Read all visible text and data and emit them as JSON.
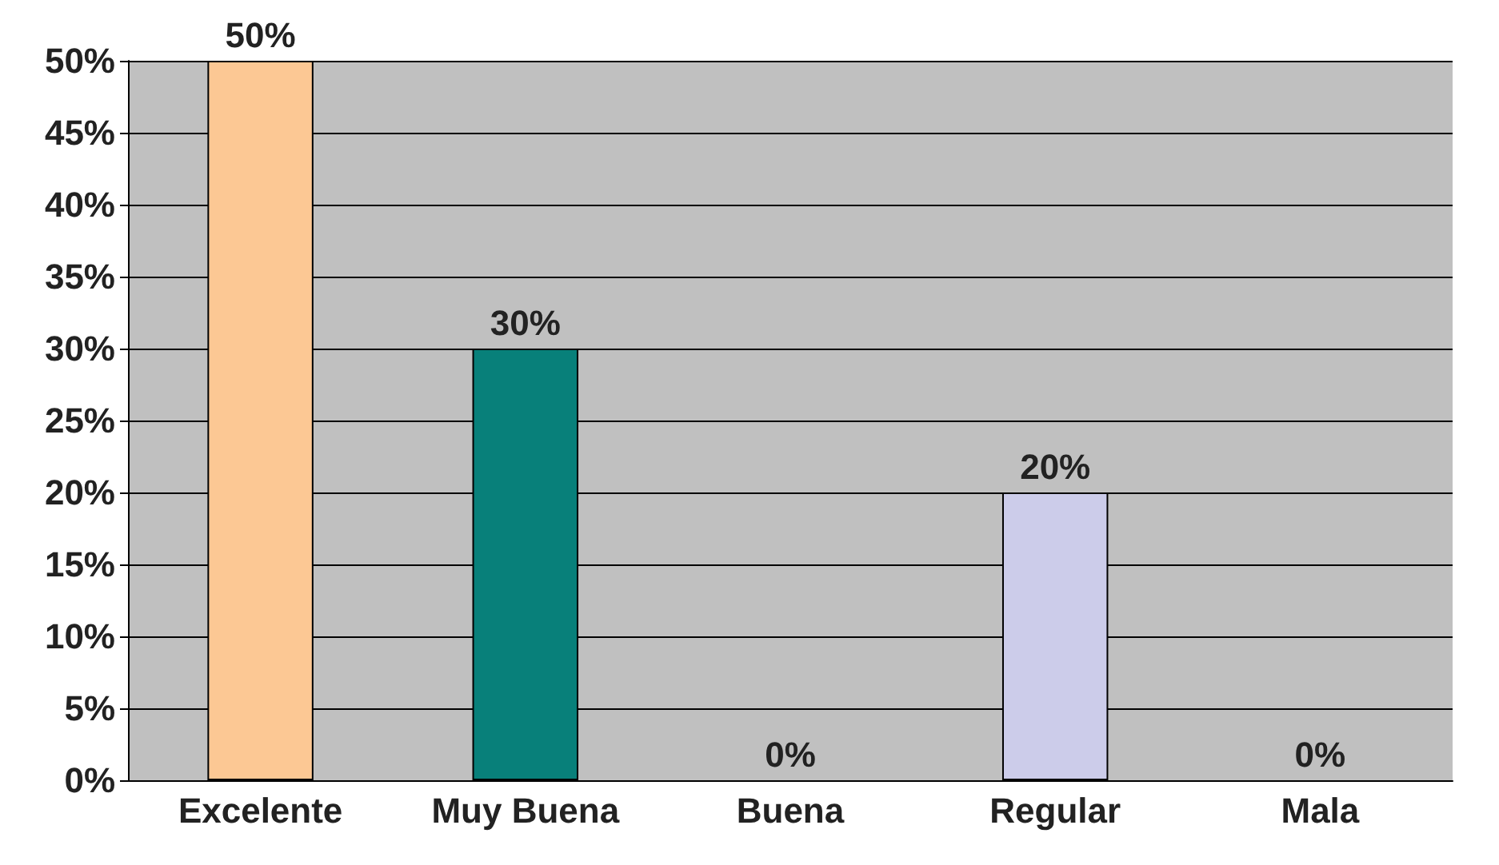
{
  "chart_data": {
    "type": "bar",
    "categories": [
      "Excelente",
      "Muy Buena",
      "Buena",
      "Regular",
      "Mala"
    ],
    "values": [
      50,
      30,
      0,
      20,
      0
    ],
    "colors": [
      "#fcc894",
      "#08807a",
      null,
      "#ccccea",
      null
    ],
    "value_labels": [
      "50%",
      "30%",
      "0%",
      "20%",
      "0%"
    ],
    "ylim": [
      0,
      50
    ],
    "yticks": [
      {
        "value": 0,
        "label": "0%"
      },
      {
        "value": 5,
        "label": "5%"
      },
      {
        "value": 10,
        "label": "10%"
      },
      {
        "value": 15,
        "label": "15%"
      },
      {
        "value": 20,
        "label": "20%"
      },
      {
        "value": 25,
        "label": "25%"
      },
      {
        "value": 30,
        "label": "30%"
      },
      {
        "value": 35,
        "label": "35%"
      },
      {
        "value": 40,
        "label": "40%"
      },
      {
        "value": 45,
        "label": "45%"
      },
      {
        "value": 50,
        "label": "50%"
      }
    ],
    "grid": "y"
  }
}
